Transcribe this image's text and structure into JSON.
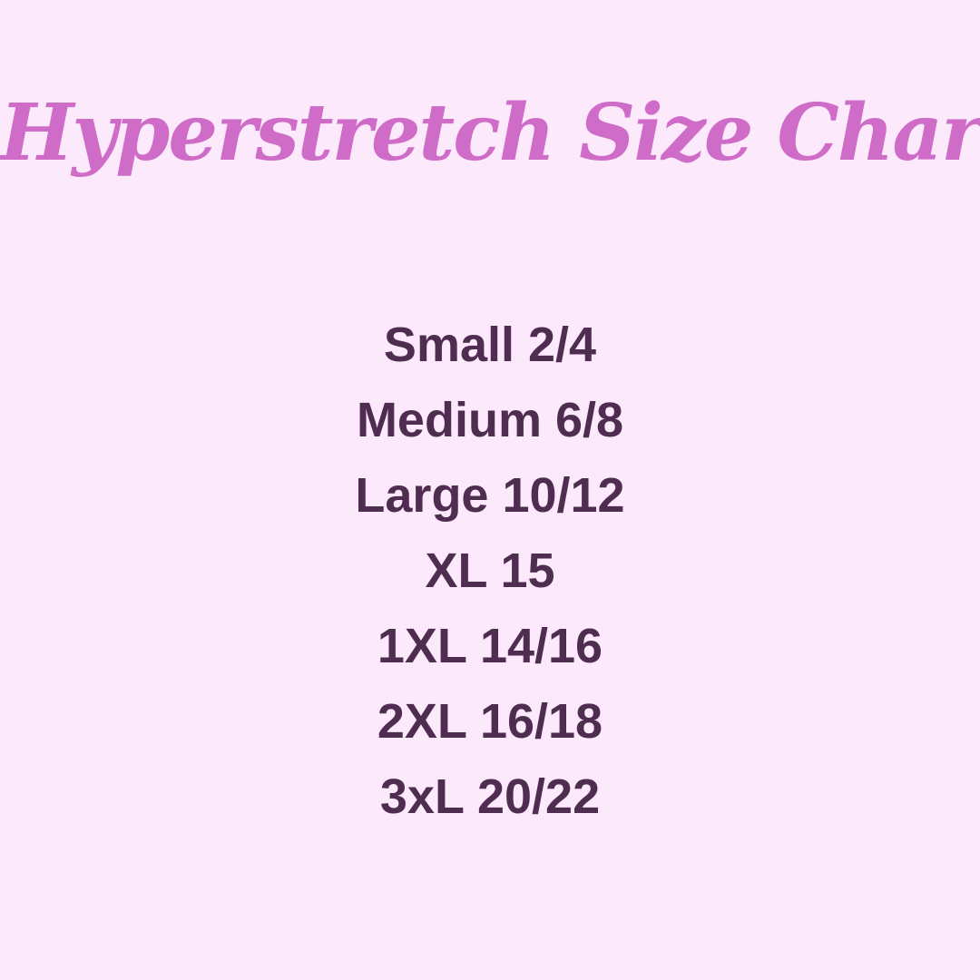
{
  "page": {
    "background_color": "#fce9fb",
    "title": {
      "text": "Hyperstretch Size Chart",
      "color": "#cf6cc8"
    },
    "size_list": {
      "color": "#4f2d50",
      "items": [
        "Small 2/4",
        "Medium 6/8",
        "Large 10/12",
        "XL 15",
        "1XL 14/16",
        "2XL 16/18",
        "3xL 20/22"
      ]
    }
  }
}
